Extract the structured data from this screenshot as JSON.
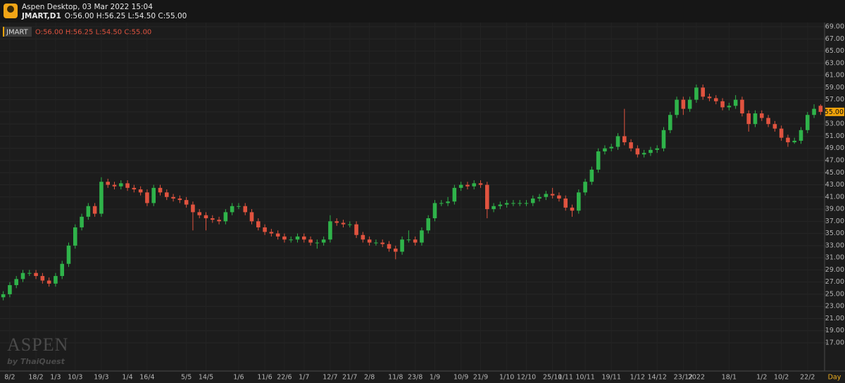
{
  "header": {
    "app_title": "Aspen Desktop, 03 Mar 2022 15:04",
    "symbol": "JMART,D1",
    "ohlc": "O:56.00 H:56.25 L:54.50 C:55.00"
  },
  "legend": {
    "symbol": "JMART",
    "ohlc": "O:56.00 H:56.25 L:54.50 C:55.00"
  },
  "watermark": {
    "brand": "ASPEN",
    "company": "by ThaiQuest"
  },
  "chart_data": {
    "type": "candlestick",
    "x_label": "Day",
    "up_color": "#2fb34a",
    "down_color": "#e0533f",
    "grid": true,
    "ylim": [
      12.6,
      69.93
    ],
    "yticks": [
      {
        "value": 17,
        "label": "17.00"
      },
      {
        "value": 19,
        "label": "19.00"
      },
      {
        "value": 21,
        "label": "21.00"
      },
      {
        "value": 23,
        "label": "23.00"
      },
      {
        "value": 25,
        "label": "25.00"
      },
      {
        "value": 27,
        "label": "27.00"
      },
      {
        "value": 29,
        "label": "29.00"
      },
      {
        "value": 31,
        "label": "31.00"
      },
      {
        "value": 33,
        "label": "33.00"
      },
      {
        "value": 35,
        "label": "35.00"
      },
      {
        "value": 37,
        "label": "37.00"
      },
      {
        "value": 39,
        "label": "39.00"
      },
      {
        "value": 41,
        "label": "41.00"
      },
      {
        "value": 43,
        "label": "43.00"
      },
      {
        "value": 45,
        "label": "45.00"
      },
      {
        "value": 47,
        "label": "47.00"
      },
      {
        "value": 49,
        "label": "49.00"
      },
      {
        "value": 51,
        "label": "51.00"
      },
      {
        "value": 53,
        "label": "53.00"
      },
      {
        "value": 55,
        "label": "55.00"
      },
      {
        "value": 57,
        "label": "57.00"
      },
      {
        "value": 59,
        "label": "59.00"
      },
      {
        "value": 61,
        "label": "61.00"
      },
      {
        "value": 63,
        "label": "63.00"
      },
      {
        "value": 65,
        "label": "65.00"
      },
      {
        "value": 67,
        "label": "67.00"
      },
      {
        "value": 69,
        "label": "69.00"
      }
    ],
    "last_price": {
      "value": 55,
      "label": "55.00",
      "color": "#f0a30a"
    },
    "categories": [
      null,
      "8/2",
      null,
      null,
      null,
      "18/2",
      null,
      null,
      "1/3",
      null,
      null,
      "10/3",
      null,
      null,
      null,
      "19/3",
      null,
      null,
      null,
      "1/4",
      null,
      null,
      "16/4",
      null,
      null,
      null,
      null,
      null,
      "5/5",
      null,
      null,
      "14/5",
      null,
      null,
      null,
      null,
      "1/6",
      null,
      null,
      null,
      "11/6",
      null,
      null,
      "22/6",
      null,
      null,
      "1/7",
      null,
      null,
      null,
      "12/7",
      null,
      null,
      "21/7",
      null,
      null,
      "2/8",
      null,
      null,
      null,
      "11/8",
      null,
      null,
      "23/8",
      null,
      null,
      "1/9",
      null,
      null,
      null,
      "10/9",
      null,
      null,
      "21/9",
      null,
      null,
      null,
      "1/10",
      null,
      null,
      "12/10",
      null,
      null,
      null,
      "25/10",
      null,
      "1/11",
      null,
      null,
      "10/11",
      null,
      null,
      null,
      "19/11",
      null,
      null,
      null,
      "1/12",
      null,
      null,
      "14/12",
      null,
      null,
      null,
      "23/12",
      null,
      "2022",
      null,
      null,
      null,
      null,
      "18/1",
      null,
      null,
      null,
      null,
      "1/2",
      null,
      null,
      "10/2",
      null,
      null,
      null,
      "22/2",
      null,
      null
    ],
    "open": [
      24.5,
      25,
      26.5,
      27.5,
      28.5,
      28.5,
      28,
      27.25,
      26.75,
      28,
      30,
      33,
      36,
      37.75,
      39.5,
      38.25,
      43.5,
      43,
      42.75,
      43.25,
      42.5,
      42.25,
      41.75,
      40,
      42.5,
      41.75,
      41,
      40.75,
      40.5,
      39.75,
      38.5,
      38,
      37.5,
      37.25,
      37,
      38.5,
      39.5,
      39.5,
      38.5,
      37,
      36,
      35.25,
      35,
      34.5,
      34,
      34,
      34.5,
      34,
      33.5,
      33.5,
      34,
      37,
      36.75,
      36.5,
      36.5,
      34.75,
      34,
      33.5,
      33.5,
      33.25,
      32.5,
      32,
      34,
      34,
      33.5,
      35.5,
      37.5,
      40,
      40,
      40.25,
      42.5,
      43,
      42.75,
      43.25,
      43,
      39,
      39.5,
      39.75,
      40,
      40,
      40,
      40,
      40.75,
      41,
      41.5,
      41.25,
      40.75,
      39.25,
      38.75,
      41.75,
      43.5,
      45.5,
      48.5,
      49,
      49.25,
      51,
      50,
      49,
      48,
      48.25,
      48.75,
      49,
      52,
      54.5,
      57,
      55.5,
      57,
      59,
      57.5,
      57.25,
      56.75,
      55.75,
      56,
      57,
      54.75,
      53,
      54.75,
      54,
      53,
      52.25,
      50.75,
      50,
      50.25,
      52,
      54.5,
      56
    ],
    "high": [
      25.5,
      27,
      28,
      29,
      29,
      29,
      28.5,
      27.75,
      28.5,
      30.5,
      33.5,
      36.5,
      38.25,
      40,
      40,
      44.25,
      44,
      43.5,
      43.75,
      43.75,
      43,
      42.75,
      42.25,
      43,
      43,
      42.25,
      41.5,
      41.25,
      41,
      40.25,
      39,
      38.5,
      38,
      37.75,
      39,
      40,
      40,
      40,
      39,
      37.5,
      36.5,
      35.75,
      35.5,
      35,
      34.5,
      35,
      35,
      34.5,
      34,
      34.5,
      38,
      37.5,
      37.25,
      37,
      37,
      35.25,
      34.5,
      34,
      34,
      33.75,
      33,
      34.5,
      35.5,
      34.5,
      36,
      38,
      40.5,
      40.5,
      41,
      43,
      43.5,
      43.5,
      43.75,
      43.75,
      43.5,
      40,
      40.25,
      40.5,
      40.5,
      40.5,
      40.5,
      41.25,
      41.5,
      42,
      42.5,
      41.75,
      41.25,
      39.75,
      42.25,
      44,
      46,
      49,
      49.5,
      49.75,
      51.5,
      55.5,
      50.5,
      49.5,
      48.75,
      49.25,
      49.5,
      52.5,
      55,
      57.5,
      57.5,
      57.5,
      59.5,
      59.5,
      58,
      57.75,
      57.25,
      56.5,
      57.75,
      57.5,
      55.25,
      55.25,
      55.25,
      54.5,
      53.5,
      52.75,
      51.25,
      50.75,
      52.5,
      55,
      56.25,
      56.25
    ],
    "low": [
      24,
      24.5,
      26,
      27,
      28,
      27.5,
      26.75,
      26.25,
      26.25,
      27.5,
      29.5,
      32.5,
      35.5,
      37.25,
      37.75,
      37.75,
      42.5,
      42.25,
      42.25,
      42,
      41.75,
      41.25,
      39.5,
      39.5,
      41.25,
      40.5,
      40.25,
      40,
      39.25,
      35.5,
      37.5,
      35.5,
      36.75,
      36.5,
      36.5,
      38,
      39,
      38,
      36.5,
      35.5,
      34.75,
      34.5,
      34,
      33.5,
      33.5,
      33.5,
      33.5,
      33,
      32.5,
      33,
      33.5,
      36.25,
      36,
      36,
      34.25,
      33.5,
      33,
      33,
      32.75,
      32,
      30.75,
      31.5,
      33.5,
      33,
      33,
      35,
      37,
      39.5,
      39.5,
      39.75,
      42,
      42.25,
      42.25,
      42.5,
      37.5,
      38.5,
      39,
      39.25,
      39.5,
      39.5,
      39.5,
      39.5,
      40.25,
      40.5,
      40.75,
      40.25,
      38.75,
      37.75,
      38.25,
      41.25,
      43,
      45,
      48,
      48.5,
      48.75,
      49.5,
      48.5,
      47.5,
      47.5,
      47.75,
      48.25,
      48.5,
      51.5,
      54,
      54.5,
      55,
      56.5,
      57,
      56.75,
      56.25,
      55.25,
      55.25,
      55.5,
      54.25,
      51.75,
      52.5,
      53.5,
      52.5,
      51.75,
      50.25,
      49.25,
      49.75,
      49.75,
      51.5,
      54,
      54.5
    ],
    "close": [
      25,
      26.5,
      27.5,
      28.5,
      28.5,
      28,
      27.25,
      26.75,
      28,
      30,
      33,
      36,
      37.75,
      39.5,
      38.25,
      43.5,
      43,
      42.75,
      43.25,
      42.5,
      42.25,
      41.75,
      40,
      42.5,
      41.75,
      41,
      40.75,
      40.5,
      39.75,
      38.5,
      38,
      37.5,
      37.25,
      37,
      38.5,
      39.5,
      39.5,
      38.5,
      37,
      36,
      35.25,
      35,
      34.5,
      34,
      34,
      34.5,
      34,
      33.5,
      33.5,
      34,
      37,
      36.75,
      36.5,
      36.5,
      34.75,
      34,
      33.5,
      33.5,
      33.25,
      32.5,
      32,
      34,
      34,
      33.5,
      35.5,
      37.5,
      40,
      40,
      40.25,
      42.5,
      43,
      42.75,
      43.25,
      43,
      39,
      39.5,
      39.75,
      40,
      40,
      40,
      40,
      40.75,
      41,
      41.5,
      41.25,
      40.75,
      39.25,
      38.75,
      41.75,
      43.5,
      45.5,
      48.5,
      49,
      49.25,
      51,
      50,
      49,
      48,
      48.25,
      48.75,
      49,
      52,
      54.5,
      57,
      55.5,
      57,
      59,
      57.5,
      57.25,
      56.75,
      55.75,
      56,
      57,
      54.75,
      53,
      54.75,
      54,
      53,
      52.25,
      50.75,
      50,
      50.25,
      52,
      54.5,
      55.5,
      55
    ]
  }
}
